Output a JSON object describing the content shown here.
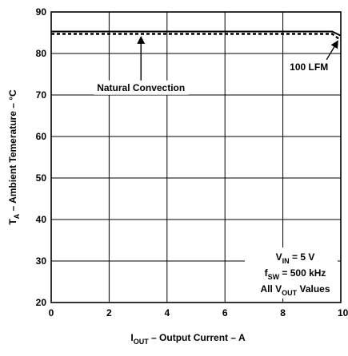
{
  "chart_data": {
    "type": "line",
    "title": "",
    "xlabel": {
      "main": "I",
      "sub": "OUT",
      "rest": " – Output Current – A"
    },
    "ylabel": {
      "main": "T",
      "sub": "A",
      "rest": " – Ambient Temerature – °C"
    },
    "xlim": [
      0,
      10
    ],
    "ylim": [
      20,
      90
    ],
    "xticks": [
      "0",
      "2",
      "4",
      "6",
      "8",
      "10"
    ],
    "yticks": [
      "20",
      "30",
      "40",
      "50",
      "60",
      "70",
      "80",
      "90"
    ],
    "xtick_values": [
      0,
      2,
      4,
      6,
      8,
      10
    ],
    "ytick_values": [
      20,
      30,
      40,
      50,
      60,
      70,
      80,
      90
    ],
    "grid": true,
    "series": [
      {
        "name": "Natural Convection",
        "style": "solid",
        "x": [
          0,
          9.7,
          10
        ],
        "y": [
          85,
          85,
          84
        ]
      },
      {
        "name": "100 LFM",
        "style": "dashed",
        "x": [
          0,
          9.7,
          10
        ],
        "y": [
          85,
          85,
          83.5
        ]
      }
    ],
    "annotations": [
      {
        "label": "Natural Convection",
        "text_x": 3.1,
        "text_y": 71,
        "arrow_to_x": 3.1,
        "arrow_to_y": 85
      },
      {
        "label": "100 LFM",
        "text_x": 8.9,
        "text_y": 76,
        "arrow_to_x": 9.9,
        "arrow_to_y": 84
      }
    ],
    "conditions": [
      {
        "main": "V",
        "sub": "IN",
        "rest": " = 5 V"
      },
      {
        "main": "f",
        "sub": "SW",
        "rest": " = 500 kHz"
      },
      {
        "main": "All V",
        "sub": "OUT",
        "rest": " Values"
      }
    ],
    "colors": {
      "line": "#000000",
      "grid": "#000000",
      "background": "#ffffff"
    }
  }
}
